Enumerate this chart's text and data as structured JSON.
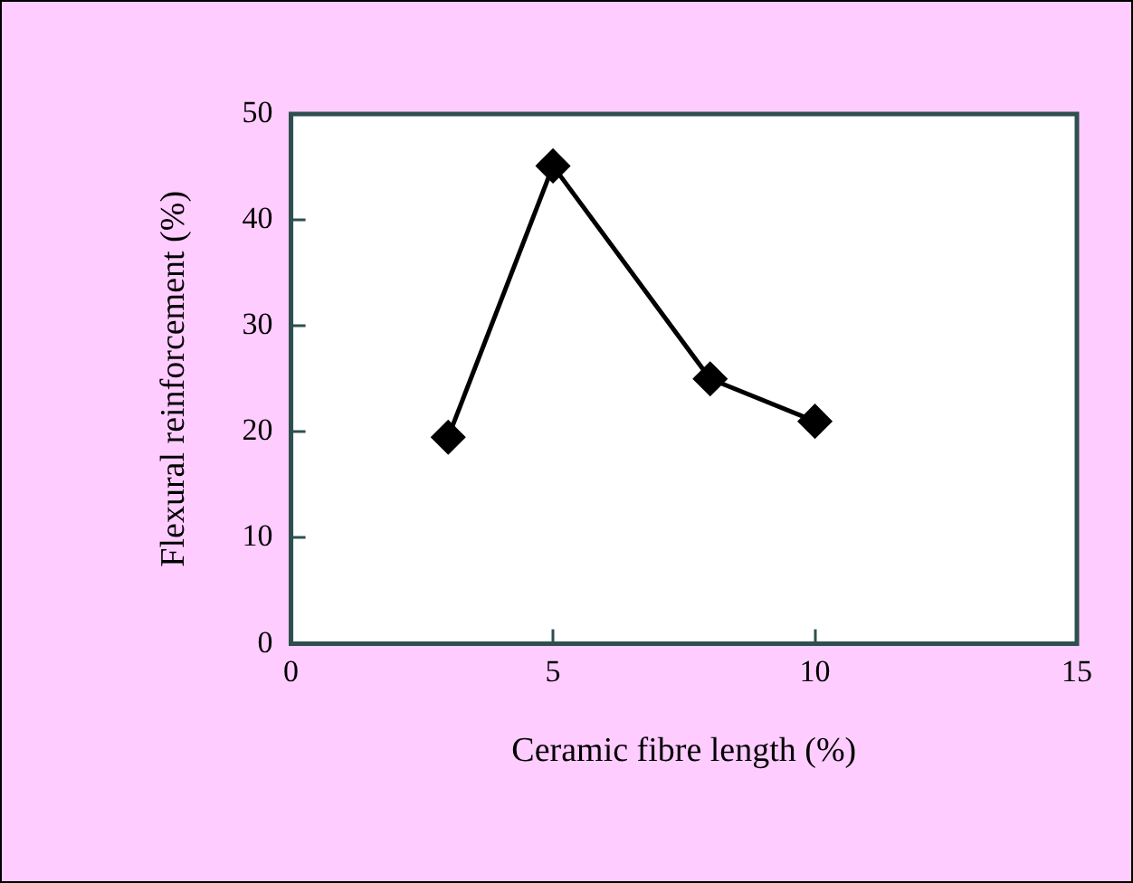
{
  "chart_data": {
    "type": "line",
    "xlabel": "Ceramic fibre length (%)",
    "ylabel": "Flexural reinforcement (%)",
    "x": [
      3,
      5,
      8,
      10
    ],
    "series": [
      {
        "color": "#000000",
        "values": [
          19.5,
          45.1,
          25,
          21
        ]
      }
    ],
    "xlim": [
      0,
      15
    ],
    "xticks": [
      0,
      5,
      10,
      15
    ],
    "ylim": [
      0,
      50
    ],
    "yticks": [
      0,
      10,
      20,
      30,
      40,
      50
    ],
    "grid": false,
    "legend": false,
    "marker": "diamond",
    "line_style": "solid"
  }
}
